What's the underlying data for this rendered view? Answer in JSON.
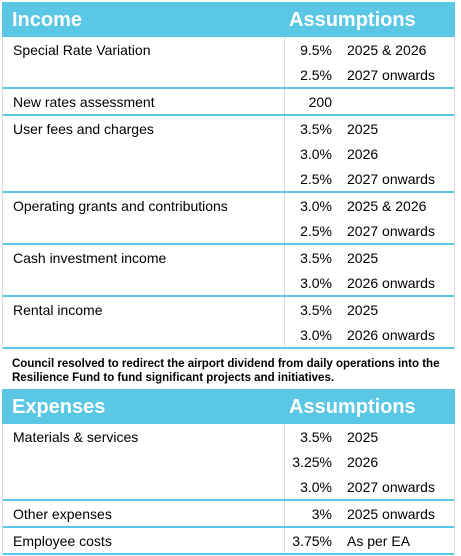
{
  "income": {
    "title": "Income",
    "assumptions_label": "Assumptions",
    "groups": [
      {
        "label": "Special Rate Variation",
        "rows": [
          {
            "value": "9.5%",
            "desc": "2025 & 2026"
          },
          {
            "value": "2.5%",
            "desc": "2027 onwards"
          }
        ]
      },
      {
        "label": "New rates assessment",
        "rows": [
          {
            "value": "200",
            "desc": ""
          }
        ]
      },
      {
        "label": "User fees and charges",
        "rows": [
          {
            "value": "3.5%",
            "desc": "2025"
          },
          {
            "value": "3.0%",
            "desc": "2026"
          },
          {
            "value": "2.5%",
            "desc": "2027 onwards"
          }
        ]
      },
      {
        "label": "Operating grants and contributions",
        "rows": [
          {
            "value": "3.0%",
            "desc": "2025 & 2026"
          },
          {
            "value": "2.5%",
            "desc": "2027 onwards"
          }
        ]
      },
      {
        "label": "Cash investment income",
        "rows": [
          {
            "value": "3.5%",
            "desc": "2025"
          },
          {
            "value": "3.0%",
            "desc": "2026 onwards"
          }
        ]
      },
      {
        "label": "Rental income",
        "rows": [
          {
            "value": "3.5%",
            "desc": "2025"
          },
          {
            "value": "3.0%",
            "desc": "2026 onwards"
          }
        ]
      }
    ]
  },
  "note": "Council resolved to redirect the airport dividend from daily operations into the Resilience Fund to fund significant projects and initiatives.",
  "expenses": {
    "title": "Expenses",
    "assumptions_label": "Assumptions",
    "groups": [
      {
        "label": "Materials & services",
        "rows": [
          {
            "value": "3.5%",
            "desc": "2025"
          },
          {
            "value": "3.25%",
            "desc": "2026"
          },
          {
            "value": "3.0%",
            "desc": "2027 onwards"
          }
        ]
      },
      {
        "label": "Other expenses",
        "rows": [
          {
            "value": "3%",
            "desc": "2025 onwards"
          }
        ]
      },
      {
        "label": "Employee costs",
        "rows": [
          {
            "value": "3.75%",
            "desc": "As per EA"
          }
        ]
      }
    ]
  },
  "colors": {
    "header": "#5ac8e4",
    "divider": "#5ac8e4"
  }
}
